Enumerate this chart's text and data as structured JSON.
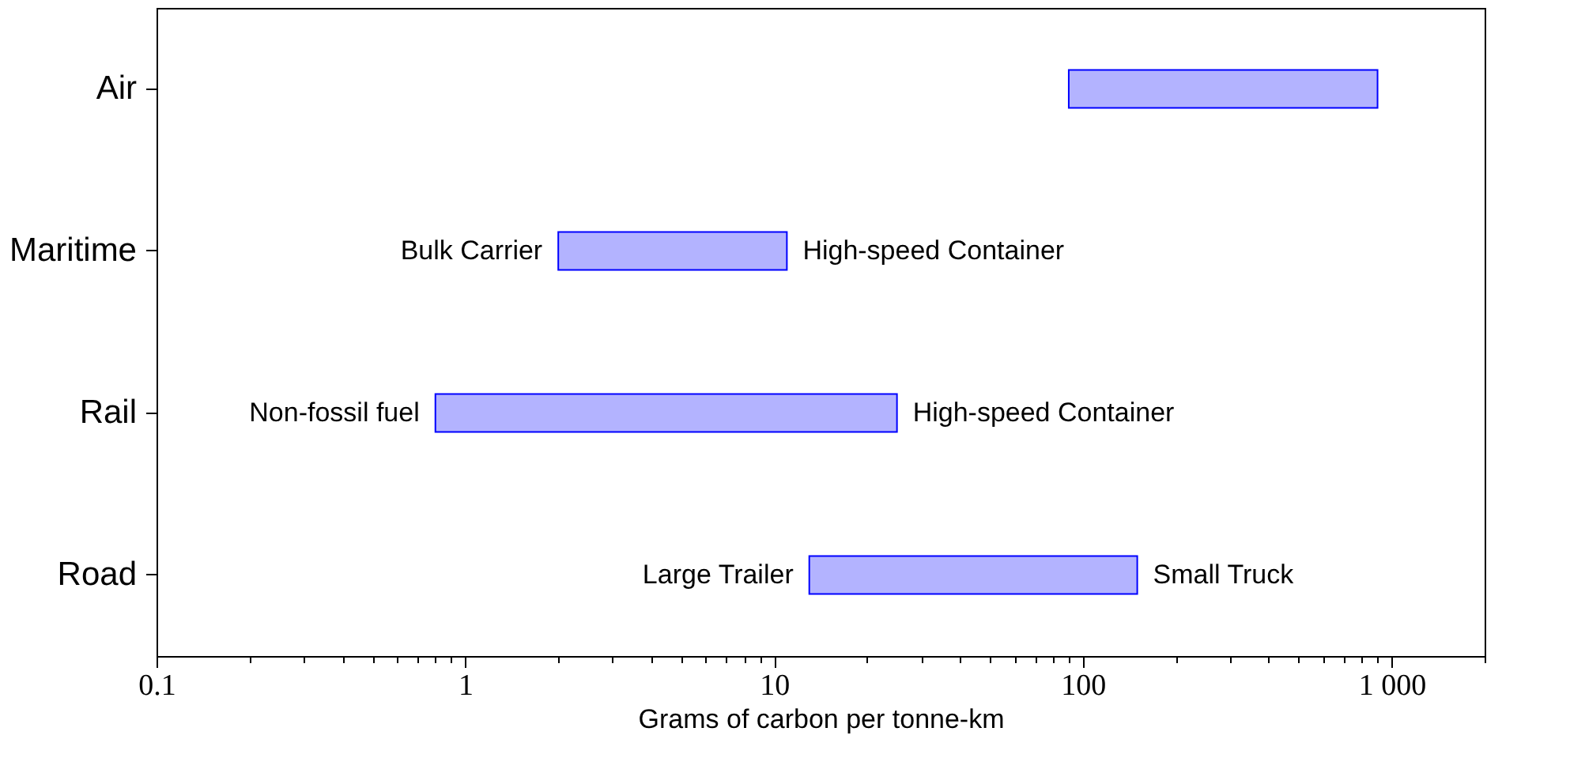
{
  "chart_data": {
    "type": "bar",
    "orientation": "horizontal",
    "log": "x",
    "xlabel": "Grams of carbon per tonne-km",
    "categories": [
      "Air",
      "Maritime",
      "Rail",
      "Road"
    ],
    "base": [
      90,
      2,
      0.8,
      13
    ],
    "values": [
      810,
      9,
      24.2,
      137
    ],
    "color": "#b3b3ff",
    "xlim": [
      0.1,
      2000
    ],
    "xticks": [
      0.1,
      {
        "value": 0.2,
        "label": null
      },
      {
        "value": 0.3,
        "label": null
      },
      {
        "value": 0.4,
        "label": null
      },
      {
        "value": 0.5,
        "label": null
      },
      {
        "value": 0.6,
        "label": null
      },
      {
        "value": 0.7,
        "label": null
      },
      {
        "value": 0.8,
        "label": null
      },
      {
        "value": 0.9,
        "label": null
      },
      1,
      {
        "value": 2,
        "label": null
      },
      {
        "value": 3,
        "label": null
      },
      {
        "value": 4,
        "label": null
      },
      {
        "value": 5,
        "label": null
      },
      {
        "value": 6,
        "label": null
      },
      {
        "value": 7,
        "label": null
      },
      {
        "value": 8,
        "label": null
      },
      {
        "value": 9,
        "label": null
      },
      10,
      {
        "value": 20,
        "label": null
      },
      {
        "value": 30,
        "label": null
      },
      {
        "value": 40,
        "label": null
      },
      {
        "value": 50,
        "label": null
      },
      {
        "value": 60,
        "label": null
      },
      {
        "value": 70,
        "label": null
      },
      {
        "value": 80,
        "label": null
      },
      {
        "value": 90,
        "label": null
      },
      100,
      {
        "value": 200,
        "label": null
      },
      {
        "value": 300,
        "label": null
      },
      {
        "value": 400,
        "label": null
      },
      {
        "value": 500,
        "label": null
      },
      {
        "value": 600,
        "label": null
      },
      {
        "value": 700,
        "label": null
      },
      {
        "value": 800,
        "label": null
      },
      {
        "value": 900,
        "label": null
      },
      {
        "value": 1000,
        "label": "1 000"
      },
      {
        "value": 2000,
        "label": null
      }
    ],
    "annotations": [
      {
        "text": "Bulk Carrier",
        "x": 2,
        "y": "Maritime"
      },
      {
        "text": "High-speed Container",
        "x": 11,
        "y": "Maritime"
      },
      {
        "text": "Non-fossil fuel",
        "x": 0.8,
        "y": "Rail"
      },
      {
        "text": "High-speed Container",
        "x": 25,
        "y": "Rail"
      },
      {
        "text": "Large Trailer",
        "x": 13,
        "y": "Road"
      },
      {
        "text": "Small Truck",
        "x": 150,
        "y": "Road"
      }
    ],
    "grid": false
  }
}
